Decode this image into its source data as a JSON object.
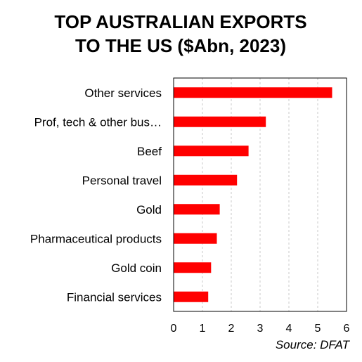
{
  "chart_data": {
    "type": "bar",
    "orientation": "horizontal",
    "title_lines": [
      "TOP AUSTRALIAN EXPORTS",
      "TO THE US ($Abn, 2023)"
    ],
    "categories": [
      "Other services",
      "Prof, tech & other bus…",
      "Beef",
      "Personal travel",
      "Gold",
      "Pharmaceutical products",
      "Gold coin",
      "Financial services"
    ],
    "values": [
      5.5,
      3.2,
      2.6,
      2.2,
      1.6,
      1.5,
      1.3,
      1.2
    ],
    "xlim": [
      0,
      6
    ],
    "xticks": [
      0,
      1,
      2,
      3,
      4,
      5,
      6
    ],
    "grid": "vertical dashed",
    "bar_color": "#ff0000",
    "source": "Source: DFAT"
  }
}
